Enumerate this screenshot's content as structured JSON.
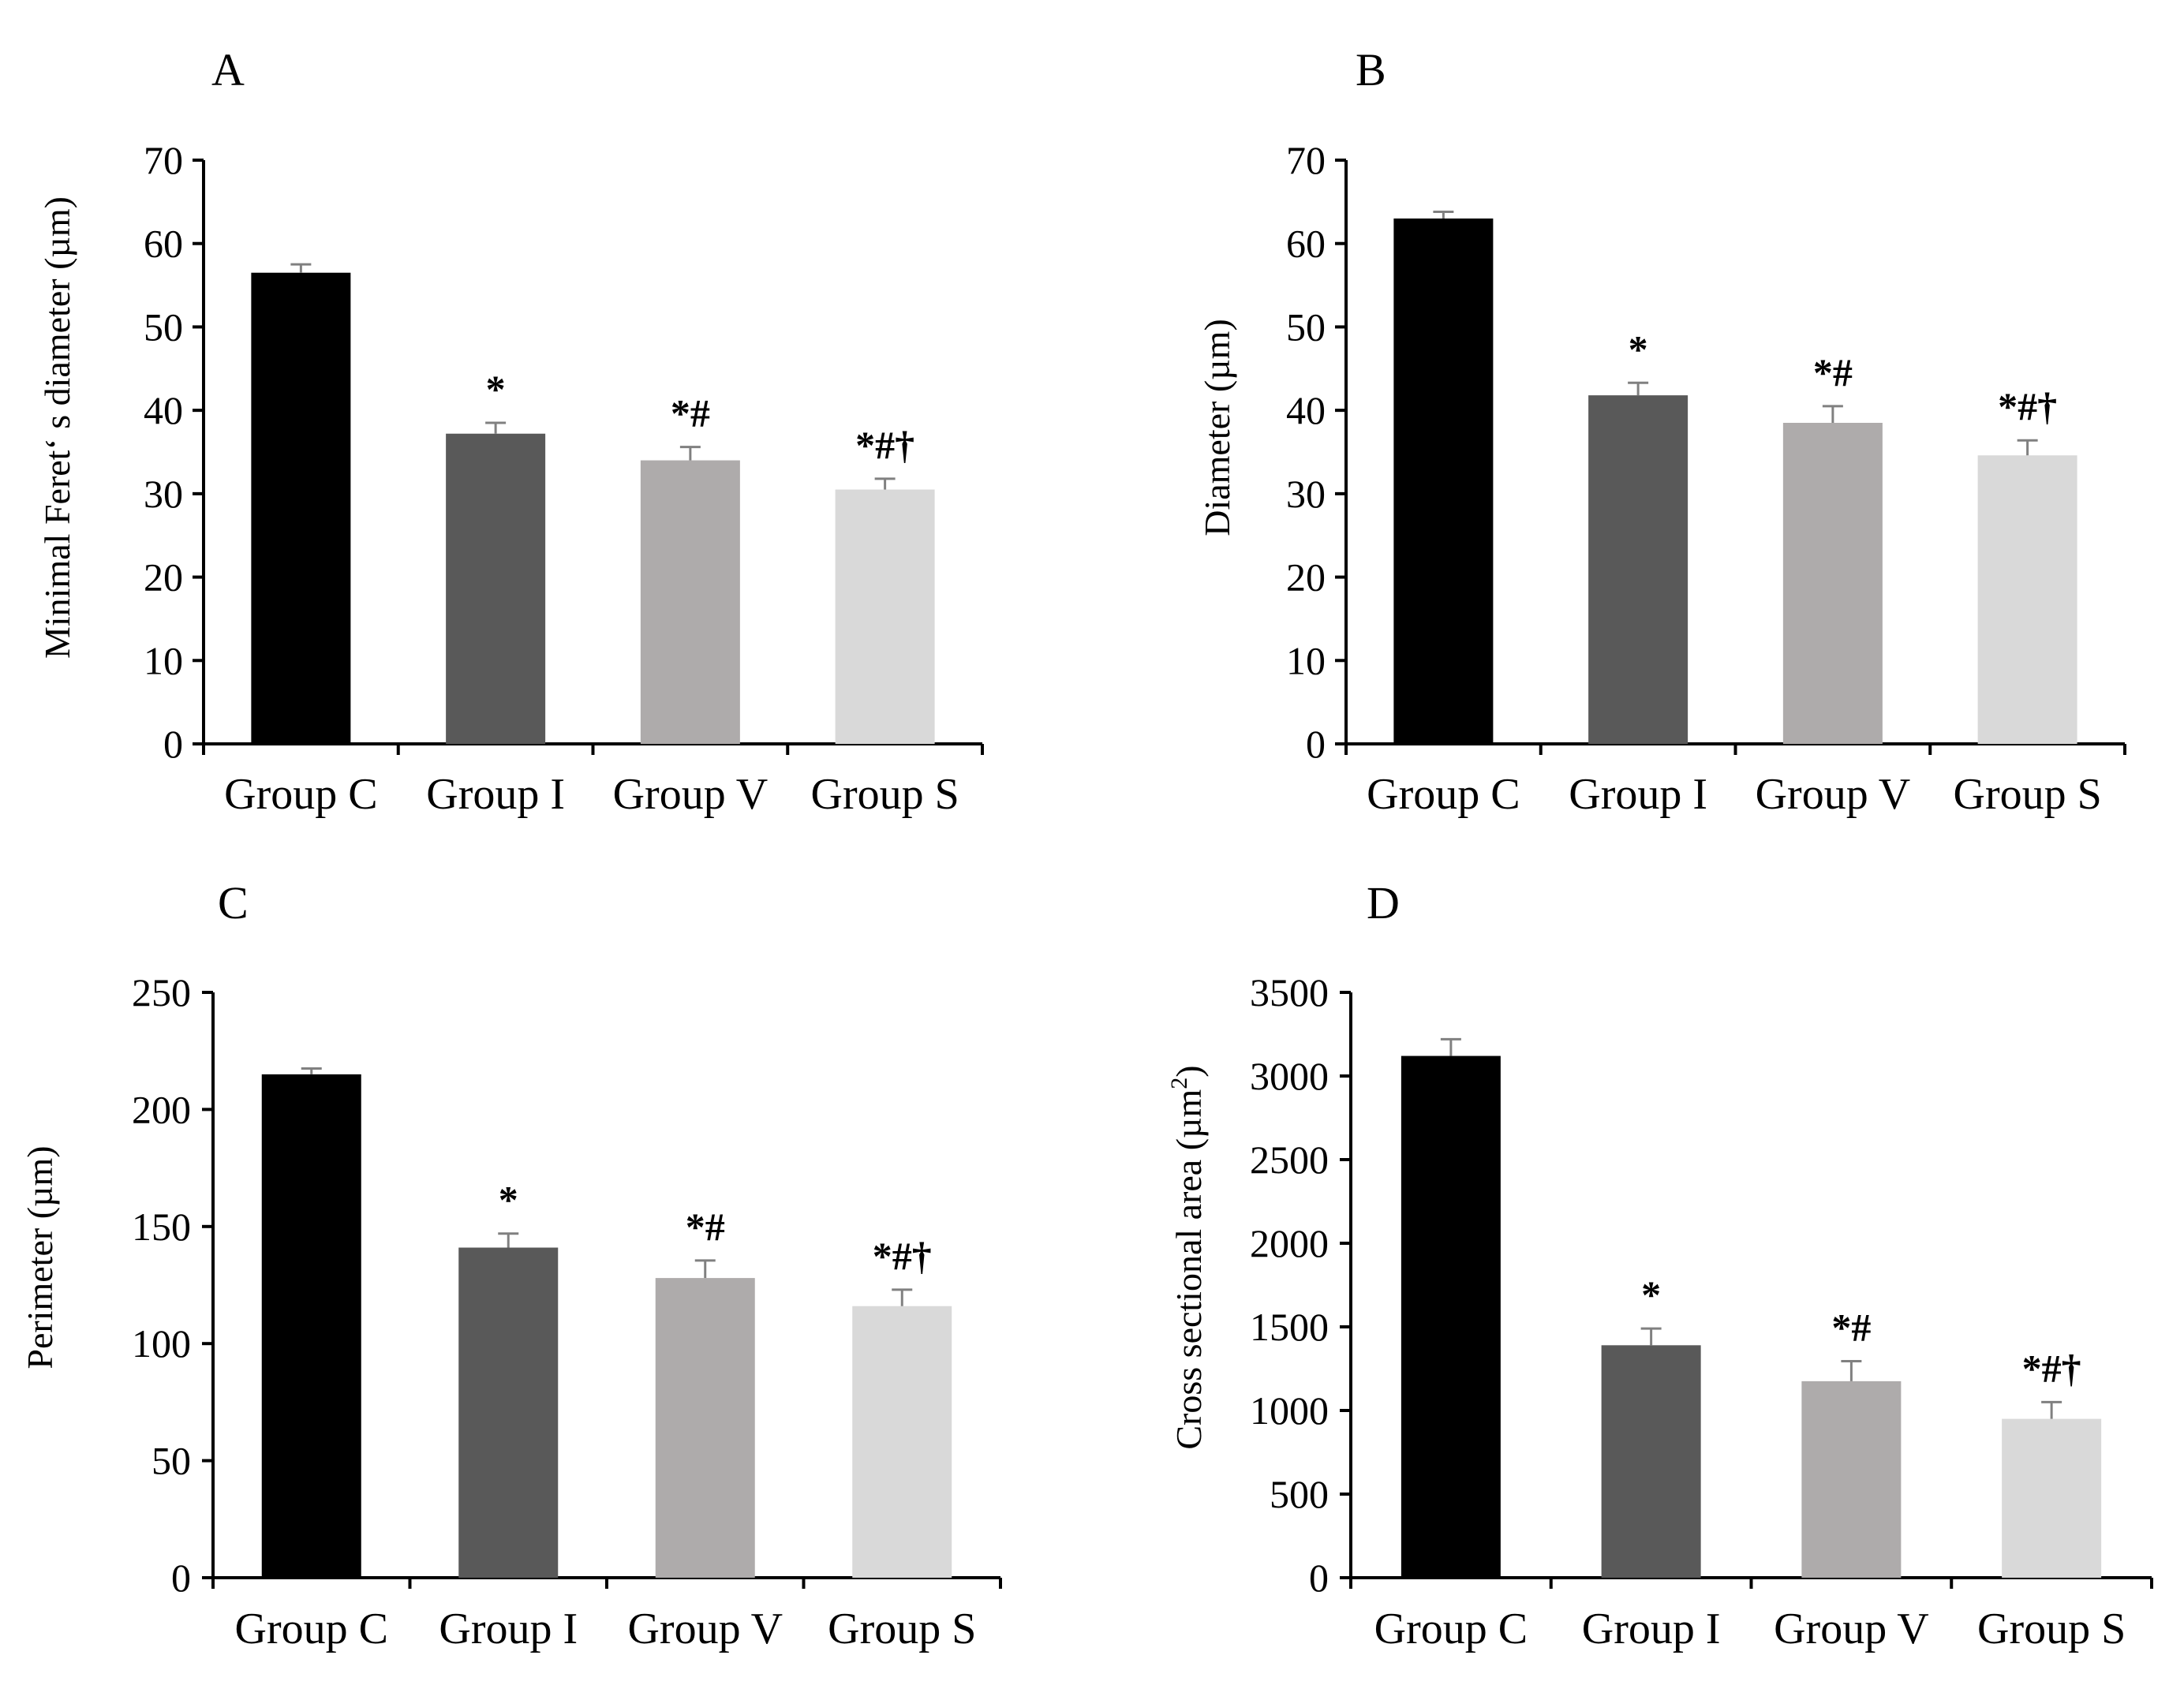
{
  "figure": {
    "colors": {
      "Group C": "#000000",
      "Group I": "#595959",
      "Group V": "#aeabab",
      "Group S": "#d9d9d9",
      "axis": "#000000",
      "error_bar": "#808080"
    }
  },
  "chart_data": [
    {
      "type": "bar",
      "panel_label": "A",
      "title": "",
      "xlabel": "",
      "ylabel": "Minimal Feretʻ s diameter (µm)",
      "categories": [
        "Group C",
        "Group I",
        "Group V",
        "Group S"
      ],
      "values": [
        56.5,
        37.2,
        34.0,
        30.5
      ],
      "errors": [
        1.0,
        1.3,
        1.6,
        1.3
      ],
      "significance": [
        "",
        "*",
        "*#",
        "*#†"
      ],
      "ylim": [
        0,
        70
      ],
      "yticks": [
        0,
        10,
        20,
        30,
        40,
        50,
        60,
        70
      ],
      "ytick_labels": [
        "0",
        "10",
        "20",
        "30",
        "40",
        "50",
        "60",
        "70"
      ],
      "grid": false,
      "legend": "none"
    },
    {
      "type": "bar",
      "panel_label": "B",
      "title": "",
      "xlabel": "",
      "ylabel": "Diameter (µm)",
      "categories": [
        "Group C",
        "Group I",
        "Group V",
        "Group S"
      ],
      "values": [
        63.0,
        41.8,
        38.5,
        34.6
      ],
      "errors": [
        0.8,
        1.5,
        2.0,
        1.8
      ],
      "significance": [
        "",
        "*",
        "*#",
        "*#†"
      ],
      "ylim": [
        0,
        70
      ],
      "yticks": [
        0,
        10,
        20,
        30,
        40,
        50,
        60,
        70
      ],
      "ytick_labels": [
        "0",
        "10",
        "20",
        "30",
        "40",
        "50",
        "60",
        "70"
      ],
      "grid": false,
      "legend": "none"
    },
    {
      "type": "bar",
      "panel_label": "C",
      "title": "",
      "xlabel": "",
      "ylabel": "Perimeter (µm)",
      "categories": [
        "Group C",
        "Group I",
        "Group V",
        "Group S"
      ],
      "values": [
        215,
        141,
        128,
        116
      ],
      "errors": [
        2.5,
        6.0,
        7.5,
        7.0
      ],
      "significance": [
        "",
        "*",
        "*#",
        "*#†"
      ],
      "ylim": [
        0,
        250
      ],
      "yticks": [
        0,
        50,
        100,
        150,
        200,
        250
      ],
      "ytick_labels": [
        "0",
        "50",
        "100",
        "150",
        "200",
        "250"
      ],
      "grid": false,
      "legend": "none"
    },
    {
      "type": "bar",
      "panel_label": "D",
      "title": "",
      "xlabel": "",
      "ylabel": "Cross sectional area (µm",
      "ylabel_superscript": "2",
      "ylabel_suffix": ")",
      "categories": [
        "Group C",
        "Group I",
        "Group V",
        "Group S"
      ],
      "values": [
        3120,
        1390,
        1175,
        950
      ],
      "errors": [
        100,
        100,
        120,
        100
      ],
      "significance": [
        "",
        "*",
        "*#",
        "*#†"
      ],
      "ylim": [
        0,
        3500
      ],
      "yticks": [
        0,
        500,
        1000,
        1500,
        2000,
        2500,
        3000,
        3500
      ],
      "ytick_labels": [
        "0",
        "500",
        "1000",
        "1500",
        "2000",
        "2500",
        "3000",
        "3500"
      ],
      "grid": false,
      "legend": "none"
    }
  ]
}
